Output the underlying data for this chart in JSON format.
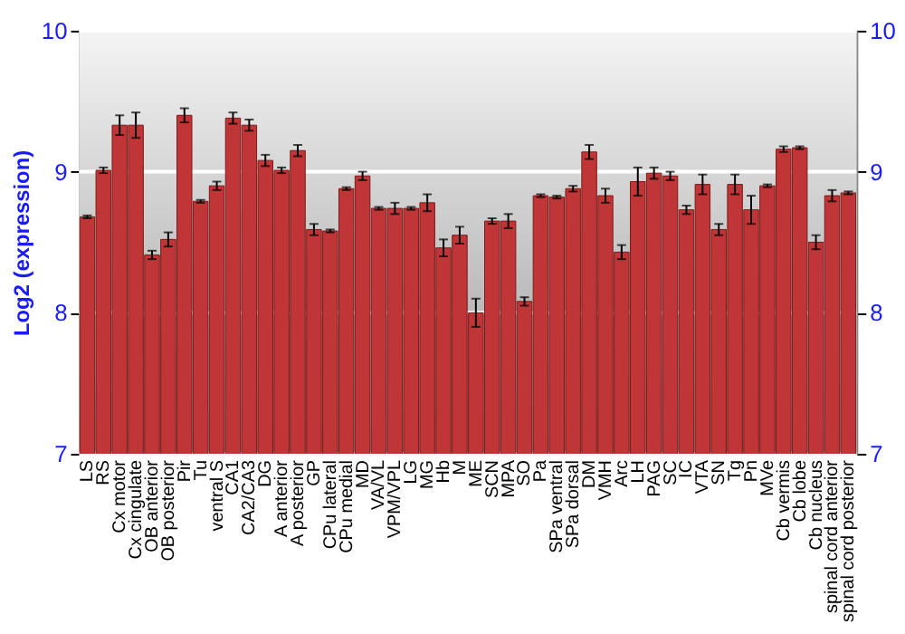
{
  "chart_data": {
    "type": "bar",
    "ylabel": "Log2 (expression)",
    "categories": [
      "LS",
      "RS",
      "Cx motor",
      "Cx cingulate",
      "OB anterior",
      "OB posterior",
      "Pir",
      "Tu",
      "ventral S",
      "CA1",
      "CA2/CA3",
      "DG",
      "A anterior",
      "A posterior",
      "GP",
      "CPu lateral",
      "CPu medial",
      "MD",
      "VA/VL",
      "VPM/VPL",
      "LG",
      "MG",
      "Hb",
      "M",
      "ME",
      "SCN",
      "MPA",
      "SO",
      "Pa",
      "SPa ventral",
      "SPa dorsal",
      "DM",
      "VMH",
      "Arc",
      "LH",
      "PAG",
      "SC",
      "IC",
      "VTA",
      "SN",
      "Tg",
      "Pn",
      "MVe",
      "Cb vermis",
      "Cb lobe",
      "Cb nucleus",
      "spinal cord anterior",
      "spinal cord posterior"
    ],
    "values": [
      8.68,
      9.01,
      9.33,
      9.33,
      8.41,
      8.52,
      9.4,
      8.79,
      8.9,
      9.38,
      9.33,
      9.08,
      9.01,
      9.15,
      8.59,
      8.58,
      8.88,
      8.97,
      8.74,
      8.74,
      8.74,
      8.78,
      8.46,
      8.55,
      8.0,
      8.65,
      8.65,
      8.08,
      8.83,
      8.82,
      8.88,
      9.14,
      8.83,
      8.43,
      8.93,
      8.99,
      8.97,
      8.73,
      8.91,
      8.59,
      8.91,
      8.73,
      8.9,
      9.16,
      9.17,
      8.5,
      8.83,
      8.85
    ],
    "errors": [
      0.01,
      0.02,
      0.07,
      0.09,
      0.03,
      0.05,
      0.05,
      0.01,
      0.03,
      0.04,
      0.04,
      0.04,
      0.02,
      0.04,
      0.04,
      0.01,
      0.01,
      0.03,
      0.01,
      0.04,
      0.01,
      0.06,
      0.06,
      0.06,
      0.1,
      0.02,
      0.05,
      0.03,
      0.01,
      0.01,
      0.02,
      0.05,
      0.05,
      0.05,
      0.1,
      0.04,
      0.03,
      0.03,
      0.07,
      0.04,
      0.07,
      0.1,
      0.01,
      0.02,
      0.01,
      0.05,
      0.04,
      0.01
    ],
    "color": "#c03535",
    "ylim": [
      7,
      10
    ],
    "yticks": [
      7,
      8,
      9,
      10
    ],
    "y2lim": [
      7,
      10
    ],
    "y2ticks": [
      7,
      8,
      9,
      10
    ],
    "grid": "y"
  }
}
